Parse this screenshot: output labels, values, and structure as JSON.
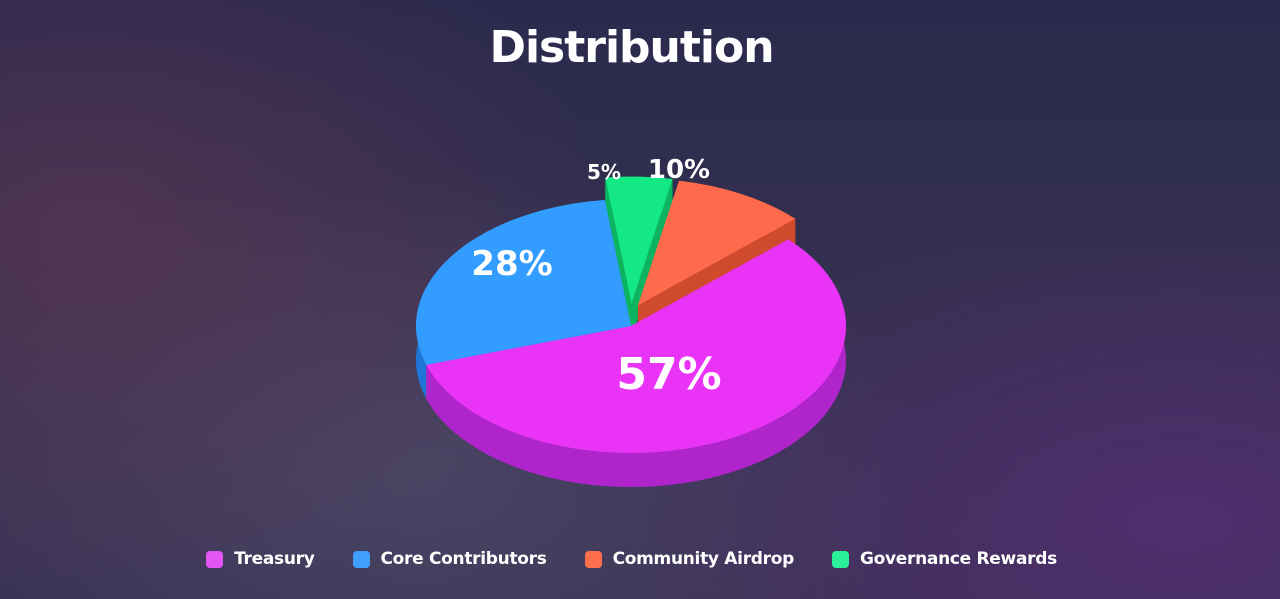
{
  "chart_data": {
    "type": "pie",
    "title": "Distribution",
    "slices": [
      {
        "name": "Treasury",
        "value": 57,
        "label": "57%",
        "color": "#e934f8",
        "side_color": "#b024cc"
      },
      {
        "name": "Core Contributors",
        "value": 28,
        "label": "28%",
        "color": "#339cff",
        "side_color": "#1f76d6"
      },
      {
        "name": "Governance Rewards",
        "value": 5,
        "label": "5%",
        "color": "#14e884",
        "side_color": "#0db460"
      },
      {
        "name": "Community Airdrop",
        "value": 10,
        "label": "10%",
        "color": "#ff6a4c",
        "side_color": "#d04a2e"
      }
    ],
    "legend": [
      {
        "name": "Treasury",
        "color": "#e455f5"
      },
      {
        "name": "Core Contributors",
        "color": "#3fa0ff"
      },
      {
        "name": "Community Airdrop",
        "color": "#ff6f4e"
      },
      {
        "name": "Governance Rewards",
        "color": "#2af09a"
      }
    ],
    "legend_position": "bottom-center",
    "style": "3d-exploded"
  }
}
